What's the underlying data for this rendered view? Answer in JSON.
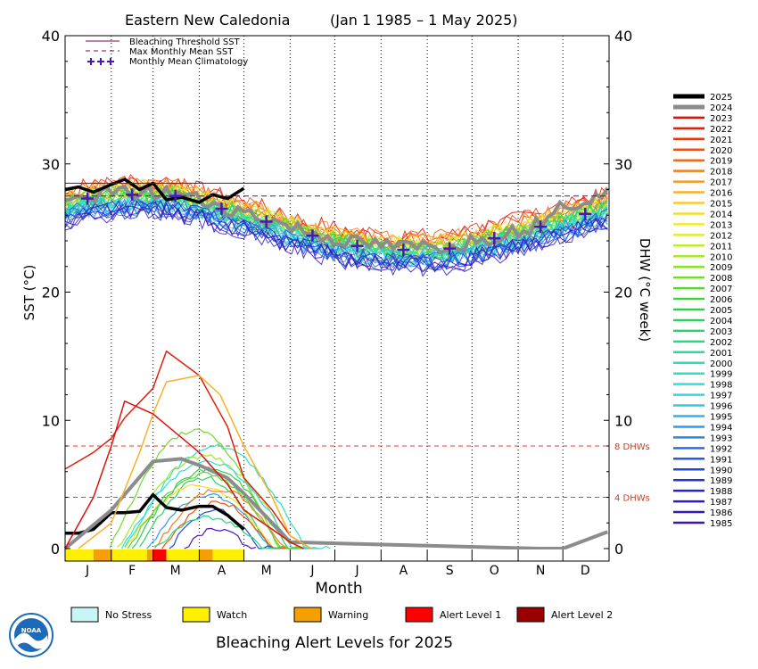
{
  "chart_data": {
    "type": "line",
    "title_region": "Eastern New Caledonia",
    "title_period": "(Jan 1 1985 – 1 May 2025)",
    "ylabel_left": "SST (°C)",
    "ylabel_right": "DHW (°C week)",
    "xlabel": "Month",
    "ylim": [
      0,
      40
    ],
    "yticks": [
      "0",
      "10",
      "20",
      "30",
      "40"
    ],
    "months": [
      "J",
      "F",
      "M",
      "A",
      "M",
      "J",
      "J",
      "A",
      "S",
      "O",
      "N",
      "D"
    ],
    "legend_lines": [
      {
        "label": "Bleaching Threshold SST",
        "color": "#7a0a4a",
        "style": "solid"
      },
      {
        "label": "Max Monthly Mean SST",
        "color": "#7a0a4a",
        "style": "dashed"
      },
      {
        "label": "Monthly Mean Climatology",
        "color": "#4b18b8",
        "style": "plus"
      }
    ],
    "bleaching_threshold": 28.5,
    "max_monthly_mean": 27.5,
    "climatology": [
      27.3,
      27.6,
      27.5,
      26.5,
      25.5,
      24.4,
      23.6,
      23.3,
      23.4,
      24.2,
      25.1,
      26.1
    ],
    "dhw_reference_lines": [
      {
        "label": "8 DHWs",
        "value": 8
      },
      {
        "label": "4 DHWs",
        "value": 4
      }
    ],
    "year_legend": [
      {
        "year": "2025",
        "color": "#000000"
      },
      {
        "year": "2024",
        "color": "#8c8c8c"
      },
      {
        "year": "2023",
        "color": "#e0110c"
      },
      {
        "year": "2022",
        "color": "#e0200c"
      },
      {
        "year": "2021",
        "color": "#e5380f"
      },
      {
        "year": "2020",
        "color": "#eb5214"
      },
      {
        "year": "2019",
        "color": "#ef6a18"
      },
      {
        "year": "2018",
        "color": "#f27f1d"
      },
      {
        "year": "2017",
        "color": "#f59a24"
      },
      {
        "year": "2016",
        "color": "#f7b22b"
      },
      {
        "year": "2015",
        "color": "#f8c92f"
      },
      {
        "year": "2014",
        "color": "#f5dd2e"
      },
      {
        "year": "2013",
        "color": "#eeec2c"
      },
      {
        "year": "2012",
        "color": "#dcef2a"
      },
      {
        "year": "2011",
        "color": "#c2ea27"
      },
      {
        "year": "2010",
        "color": "#a8e626"
      },
      {
        "year": "2009",
        "color": "#8ee028"
      },
      {
        "year": "2008",
        "color": "#72db2c"
      },
      {
        "year": "2007",
        "color": "#56d534"
      },
      {
        "year": "2006",
        "color": "#40d13e"
      },
      {
        "year": "2005",
        "color": "#30ce4c"
      },
      {
        "year": "2004",
        "color": "#2ad05e"
      },
      {
        "year": "2003",
        "color": "#28d470"
      },
      {
        "year": "2002",
        "color": "#28d884"
      },
      {
        "year": "2001",
        "color": "#29dc98"
      },
      {
        "year": "2000",
        "color": "#2ae0ae"
      },
      {
        "year": "1999",
        "color": "#2ce2c4"
      },
      {
        "year": "1998",
        "color": "#2ee0d8"
      },
      {
        "year": "1997",
        "color": "#2fd8e8"
      },
      {
        "year": "1996",
        "color": "#2ec8ee"
      },
      {
        "year": "1995",
        "color": "#2cb4ee"
      },
      {
        "year": "1994",
        "color": "#2a9eec"
      },
      {
        "year": "1993",
        "color": "#2886e8"
      },
      {
        "year": "1992",
        "color": "#2670e2"
      },
      {
        "year": "1991",
        "color": "#245adc"
      },
      {
        "year": "1990",
        "color": "#2346d6"
      },
      {
        "year": "1989",
        "color": "#2234d0"
      },
      {
        "year": "1988",
        "color": "#2424c8"
      },
      {
        "year": "1987",
        "color": "#2a1ec2"
      },
      {
        "year": "1986",
        "color": "#3318bc"
      },
      {
        "year": "1985",
        "color": "#3d14b6"
      }
    ],
    "series": [
      {
        "name": "2025",
        "color": "#000000",
        "kind": "sst",
        "x": [
          "Jan 1",
          "Jan 10",
          "Jan 20",
          "Feb 1",
          "Feb 10",
          "Feb 20",
          "Mar 1",
          "Mar 10",
          "Mar 20",
          "Apr 1",
          "Apr 10",
          "Apr 20",
          "May 1"
        ],
        "values": [
          28.0,
          28.2,
          27.8,
          28.4,
          28.8,
          28.0,
          28.5,
          27.2,
          27.4,
          27.0,
          27.6,
          27.3,
          28.1
        ]
      },
      {
        "name": "2025",
        "color": "#000000",
        "kind": "dhw",
        "x": [
          "Jan 1",
          "Jan 10",
          "Jan 20",
          "Feb 1",
          "Feb 10",
          "Feb 20",
          "Mar 1",
          "Mar 10",
          "Mar 20",
          "Apr 1",
          "Apr 10",
          "Apr 20",
          "May 1"
        ],
        "values": [
          1.2,
          1.2,
          1.5,
          2.8,
          2.8,
          2.9,
          4.2,
          3.2,
          3.0,
          3.3,
          3.3,
          2.6,
          1.5
        ]
      },
      {
        "name": "2024",
        "color": "#8c8c8c",
        "kind": "dhw",
        "x": [
          "Jan 1",
          "Feb 1",
          "Mar 1",
          "Mar 20",
          "Apr 1",
          "Apr 20",
          "May 1",
          "May 20",
          "Jun 1",
          "Nov 15",
          "Dec 1",
          "Dec 31"
        ],
        "values": [
          0,
          3.0,
          6.8,
          7.0,
          6.5,
          5.5,
          4.3,
          2.0,
          0.5,
          0,
          0,
          1.3
        ]
      },
      {
        "name": "2022",
        "color": "#e0200c",
        "kind": "dhw",
        "x": [
          "Jan 1",
          "Jan 20",
          "Feb 1",
          "Feb 10",
          "Mar 1",
          "Mar 10",
          "Apr 1",
          "Apr 20",
          "May 1",
          "May 20",
          "Jun 1",
          "Jun 15"
        ],
        "values": [
          6.2,
          7.5,
          8.6,
          10.2,
          12.5,
          15.4,
          13.5,
          9.5,
          5.5,
          3.0,
          1.0,
          0
        ]
      },
      {
        "name": "2016",
        "color": "#f7b22b",
        "kind": "dhw",
        "x": [
          "Jan 10",
          "Feb 1",
          "Feb 20",
          "Mar 1",
          "Mar 10",
          "Apr 1",
          "Apr 15",
          "May 1",
          "May 20",
          "Jun 1",
          "Jun 15"
        ],
        "values": [
          0,
          2.0,
          7.5,
          10.5,
          13.0,
          13.5,
          12.0,
          8.0,
          4.0,
          1.0,
          0
        ]
      },
      {
        "name": "2023",
        "color": "#e0110c",
        "kind": "dhw",
        "x": [
          "Jan 1",
          "Jan 20",
          "Feb 1",
          "Feb 10",
          "Mar 1",
          "Apr 1",
          "Apr 20",
          "May 1",
          "May 20",
          "Jun 1",
          "Jun 10"
        ],
        "values": [
          0,
          4.0,
          8.0,
          11.5,
          10.5,
          7.5,
          5.0,
          3.0,
          1.5,
          0.5,
          0
        ]
      }
    ],
    "alert_bar_2025": [
      {
        "level": "Watch",
        "from": "Jan 1",
        "to": "Jan 20"
      },
      {
        "level": "Warning",
        "from": "Jan 20",
        "to": "Feb 1"
      },
      {
        "level": "Watch",
        "from": "Feb 1",
        "to": "Feb 25"
      },
      {
        "level": "Warning",
        "from": "Feb 25",
        "to": "Mar 1"
      },
      {
        "level": "Alert Level 1",
        "from": "Mar 1",
        "to": "Mar 10"
      },
      {
        "level": "Watch",
        "from": "Mar 10",
        "to": "Apr 1"
      },
      {
        "level": "Warning",
        "from": "Apr 1",
        "to": "Apr 10"
      },
      {
        "level": "Watch",
        "from": "Apr 10",
        "to": "May 1"
      }
    ]
  },
  "alert_legend": [
    {
      "label": "No Stress",
      "color": "#c8f5f5"
    },
    {
      "label": "Watch",
      "color": "#fff000"
    },
    {
      "label": "Warning",
      "color": "#f5a000"
    },
    {
      "label": "Alert Level 1",
      "color": "#ff0000"
    },
    {
      "label": "Alert Level 2",
      "color": "#9a0000"
    }
  ],
  "footer_title": "Bleaching Alert Levels for 2025",
  "logo": {
    "text": "NOAA",
    "color": "#1b6bb8"
  }
}
